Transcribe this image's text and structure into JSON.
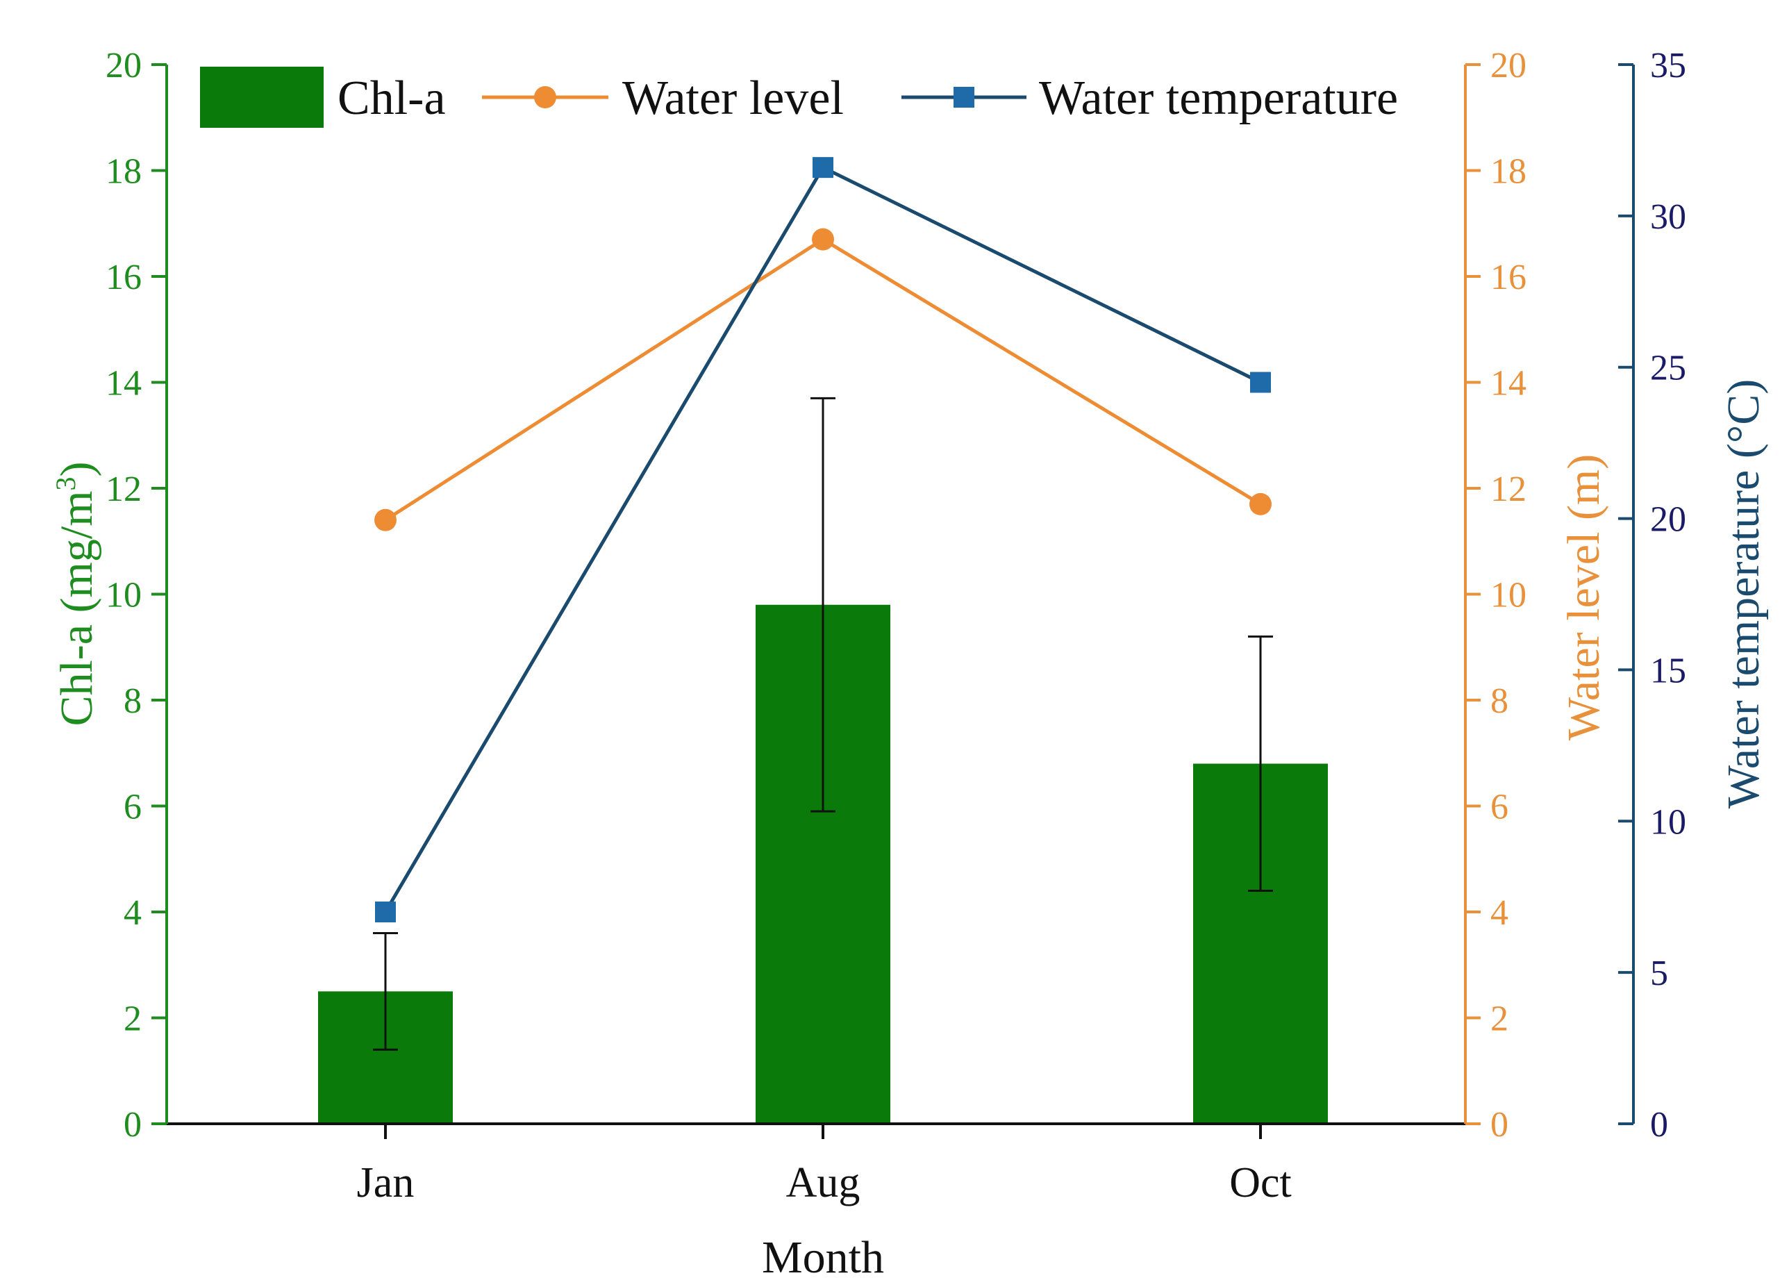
{
  "chart_data": {
    "type": "bar",
    "categories": [
      "Jan",
      "Aug",
      "Oct"
    ],
    "xlabel": "Month",
    "axes": {
      "chla": {
        "label_main": "Chl-a (mg/m",
        "label_sup": "3",
        "label_end": ")",
        "ylim": [
          0,
          20
        ],
        "ticks": [
          "0",
          "2",
          "4",
          "6",
          "8",
          "10",
          "12",
          "14",
          "16",
          "18",
          "20"
        ],
        "color": "#1e8c1e"
      },
      "level": {
        "label": "Water level (m)",
        "ylim": [
          0,
          20
        ],
        "ticks": [
          "0",
          "2",
          "4",
          "6",
          "8",
          "10",
          "12",
          "14",
          "16",
          "18",
          "20"
        ],
        "color": "#e8913a"
      },
      "temp": {
        "label": "Water temperature (°C)",
        "ylim": [
          0,
          35
        ],
        "ticks": [
          "0",
          "5",
          "10",
          "15",
          "20",
          "25",
          "30",
          "35"
        ],
        "color": "#1a4a6e",
        "tick_color": "#1a1a66"
      }
    },
    "series": [
      {
        "name": "Chl-a",
        "kind": "bar",
        "axis": "chla",
        "values": [
          2.5,
          9.8,
          6.8
        ],
        "error": [
          [
            1.4,
            3.6
          ],
          [
            5.9,
            13.7
          ],
          [
            4.4,
            9.2
          ]
        ],
        "color": "#0a7a0a"
      },
      {
        "name": "Water level",
        "kind": "line",
        "marker": "circle",
        "axis": "level",
        "values": [
          11.4,
          16.7,
          11.7
        ],
        "color": "#ee8c34"
      },
      {
        "name": "Water temperature",
        "kind": "line",
        "marker": "square",
        "axis": "temp",
        "values": [
          7.0,
          31.6,
          24.5
        ],
        "color": "#1a4a6e",
        "marker_color": "#1f6aa8"
      }
    ],
    "legend": "top",
    "grid": false
  }
}
